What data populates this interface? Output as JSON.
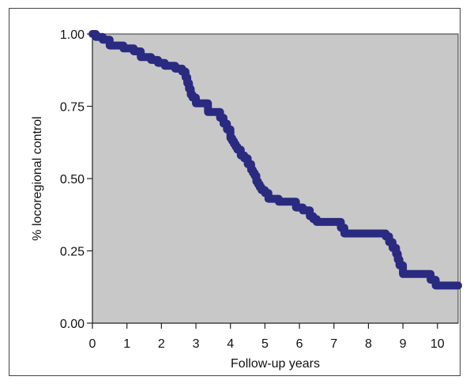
{
  "chart_data": {
    "type": "line",
    "title": "",
    "xlabel": "Follow-up years",
    "ylabel": "% locoregional control",
    "xlim": [
      0,
      10.6
    ],
    "ylim": [
      0,
      1.0
    ],
    "xticks": [
      0,
      1,
      2,
      3,
      4,
      5,
      6,
      7,
      8,
      9,
      10
    ],
    "xtick_labels": [
      "0",
      "1",
      "2",
      "3",
      "4",
      "5",
      "6",
      "7",
      "8",
      "9",
      "10"
    ],
    "yticks": [
      0,
      0.25,
      0.5,
      0.75,
      1.0
    ],
    "ytick_labels": [
      "0.00",
      "0.25",
      "0.50",
      "0.75",
      "1.00"
    ],
    "grid": false,
    "plot_background": "#c8c8c8",
    "series": [
      {
        "step": true,
        "color": "#2a2a80",
        "x": [
          0,
          0.1,
          0.3,
          0.5,
          0.9,
          1.2,
          1.4,
          1.7,
          1.9,
          2.1,
          2.4,
          2.6,
          2.7,
          2.75,
          2.8,
          2.85,
          2.9,
          3.0,
          3.35,
          3.7,
          3.8,
          3.9,
          4.0,
          4.05,
          4.1,
          4.15,
          4.2,
          4.3,
          4.4,
          4.5,
          4.6,
          4.65,
          4.7,
          4.75,
          4.8,
          4.85,
          4.9,
          5.0,
          5.1,
          5.4,
          5.9,
          6.1,
          6.3,
          6.4,
          6.5,
          7.2,
          7.3,
          8.5,
          8.6,
          8.7,
          8.8,
          8.85,
          8.9,
          9.0,
          9.8,
          9.95,
          10.6
        ],
        "y": [
          1.0,
          0.99,
          0.98,
          0.96,
          0.95,
          0.94,
          0.92,
          0.91,
          0.9,
          0.89,
          0.88,
          0.87,
          0.85,
          0.83,
          0.81,
          0.79,
          0.78,
          0.76,
          0.73,
          0.71,
          0.69,
          0.67,
          0.64,
          0.63,
          0.62,
          0.61,
          0.6,
          0.58,
          0.57,
          0.55,
          0.53,
          0.52,
          0.51,
          0.49,
          0.48,
          0.47,
          0.46,
          0.45,
          0.43,
          0.42,
          0.4,
          0.39,
          0.37,
          0.36,
          0.35,
          0.33,
          0.31,
          0.3,
          0.28,
          0.26,
          0.24,
          0.22,
          0.2,
          0.17,
          0.15,
          0.13,
          0.13
        ]
      }
    ]
  }
}
